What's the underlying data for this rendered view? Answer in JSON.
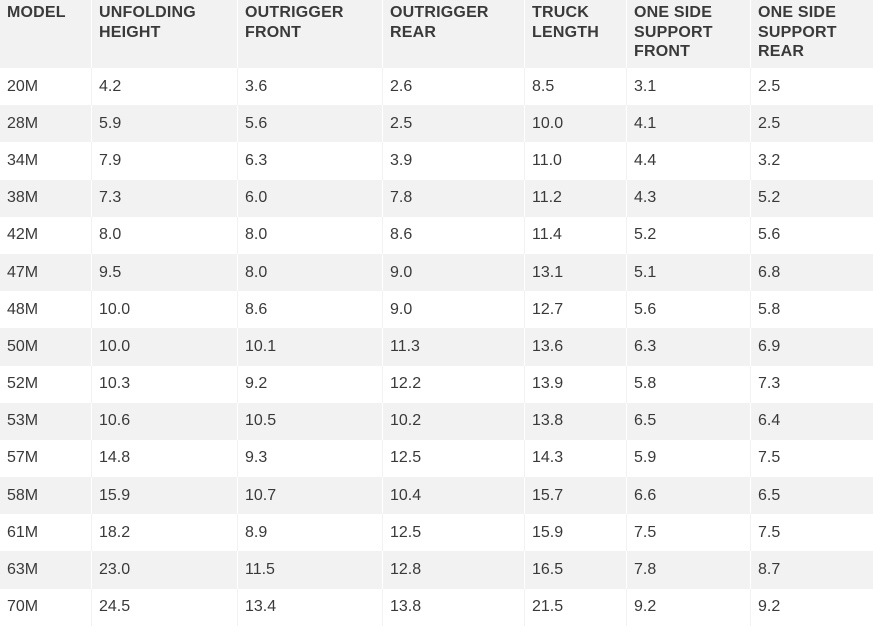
{
  "table": {
    "headers": [
      "MODEL",
      "UNFOLDING\nHEIGHT",
      "OUTRIGGER\nFRONT",
      "OUTRIGGER\nREAR",
      "TRUCK\nLENGTH",
      "ONE SIDE\nSUPPORT\nFRONT",
      "ONE SIDE\nSUPPORT\nREAR"
    ],
    "rows": [
      [
        "20M",
        "4.2",
        "3.6",
        "2.6",
        "8.5",
        "3.1",
        "2.5"
      ],
      [
        "28M",
        "5.9",
        "5.6",
        "2.5",
        "10.0",
        "4.1",
        "2.5"
      ],
      [
        "34M",
        "7.9",
        "6.3",
        "3.9",
        "11.0",
        "4.4",
        "3.2"
      ],
      [
        "38M",
        "7.3",
        "6.0",
        "7.8",
        "11.2",
        "4.3",
        "5.2"
      ],
      [
        "42M",
        "8.0",
        "8.0",
        "8.6",
        "11.4",
        "5.2",
        "5.6"
      ],
      [
        "47M",
        "9.5",
        "8.0",
        "9.0",
        "13.1",
        "5.1",
        "6.8"
      ],
      [
        "48M",
        "10.0",
        "8.6",
        "9.0",
        "12.7",
        "5.6",
        "5.8"
      ],
      [
        "50M",
        "10.0",
        "10.1",
        "11.3",
        "13.6",
        "6.3",
        "6.9"
      ],
      [
        "52M",
        "10.3",
        "9.2",
        "12.2",
        "13.9",
        "5.8",
        "7.3"
      ],
      [
        "53M",
        "10.6",
        "10.5",
        "10.2",
        "13.8",
        "6.5",
        "6.4"
      ],
      [
        "57M",
        "14.8",
        "9.3",
        "12.5",
        "14.3",
        "5.9",
        "7.5"
      ],
      [
        "58M",
        "15.9",
        "10.7",
        "10.4",
        "15.7",
        "6.6",
        "6.5"
      ],
      [
        "61M",
        "18.2",
        "8.9",
        "12.5",
        "15.9",
        "7.5",
        "7.5"
      ],
      [
        "63M",
        "23.0",
        "11.5",
        "12.8",
        "16.5",
        "7.8",
        "8.7"
      ],
      [
        "70M",
        "24.5",
        "13.4",
        "13.8",
        "21.5",
        "9.2",
        "9.2"
      ]
    ]
  },
  "colors": {
    "stripe": "#f2f2f2",
    "text": "#3a3a3a",
    "background": "#ffffff"
  }
}
